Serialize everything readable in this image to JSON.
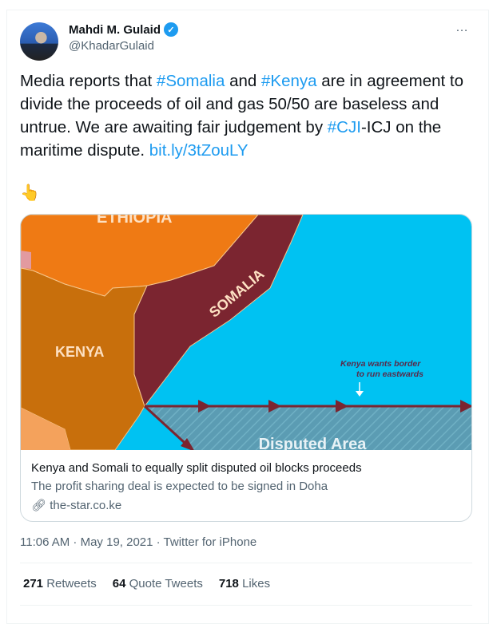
{
  "author": {
    "name": "Mahdi M. Gulaid",
    "handle": "@KhadarGulaid",
    "verified": true
  },
  "more_icon": "…",
  "tweet": {
    "pre1": "Media reports that ",
    "tag1": "#Somalia",
    "mid1": " and ",
    "tag2": "#Kenya",
    "post1": " are in agreement to divide the proceeds of oil and gas 50/50 are baseless and untrue. We are awaiting fair judgement by ",
    "tag3": "#CJI",
    "post2": "-ICJ on the maritime dispute. ",
    "link": "bit.ly/3tZouLY",
    "emoji": "👆"
  },
  "card": {
    "map_labels": {
      "ethiopia": "ETHIOPIA",
      "somalia": "SOMALIA",
      "kenya": "KENYA",
      "note1": "Kenya wants border",
      "note2": "to run eastwards",
      "disputed": "Disputed Area"
    },
    "title": "Kenya and Somali to equally split disputed oil blocks proceeds",
    "description": "The profit sharing deal is expected to be signed in Doha",
    "domain": "the-star.co.ke"
  },
  "meta": "11:06 AM · May 19, 2021 · Twitter for iPhone",
  "stats": [
    {
      "count": "271",
      "label": "Retweets"
    },
    {
      "count": "64",
      "label": "Quote Tweets"
    },
    {
      "count": "718",
      "label": "Likes"
    }
  ],
  "colors": {
    "accent": "#1d9bf0",
    "ethiopia": "#ef7a14",
    "kenya": "#c86f0c",
    "somalia": "#7b2530",
    "sea": "#00c2f2"
  }
}
